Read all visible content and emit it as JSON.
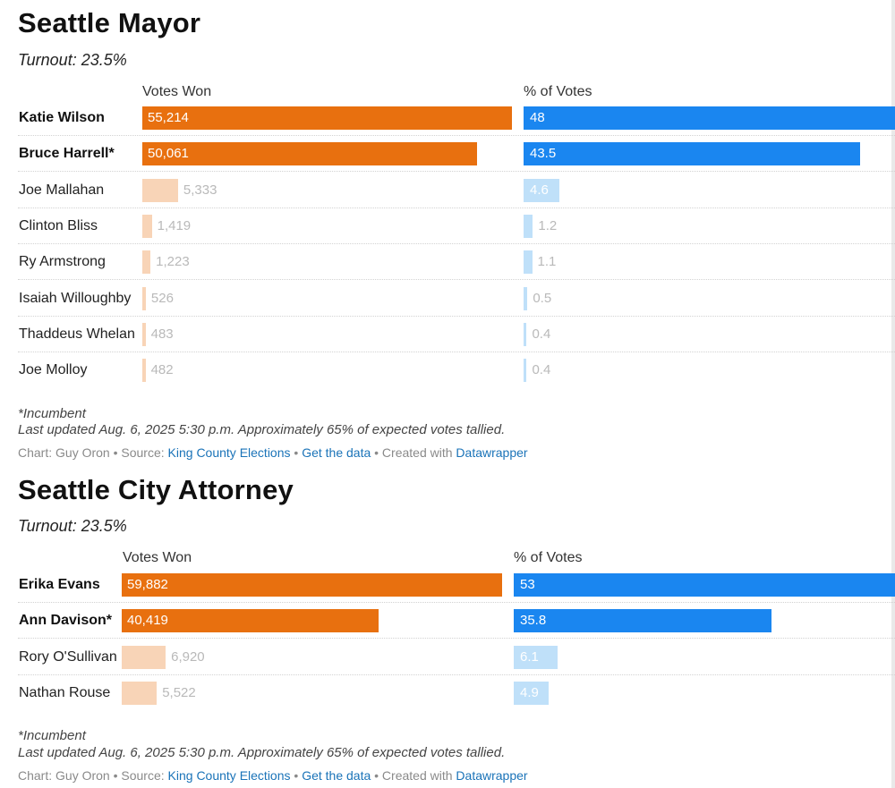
{
  "charts": [
    {
      "title": "Seattle Mayor",
      "turnout": "Turnout: 23.5%",
      "columns": {
        "votes": "Votes Won",
        "pct": "% of Votes"
      },
      "footnote": "*Incumbent",
      "updated": "Last updated Aug. 6, 2025 5:30 p.m. Approximately 65% of expected votes tallied.",
      "credit": {
        "prefix": "Chart: Guy Oron • Source: ",
        "source": "King County Elections",
        "sep1": " • ",
        "getdata": "Get the data",
        "sep2": " • Created with ",
        "tool": "Datawrapper"
      }
    },
    {
      "title": "Seattle City Attorney",
      "turnout": "Turnout: 23.5%",
      "columns": {
        "votes": "Votes Won",
        "pct": "% of Votes"
      },
      "footnote": "*Incumbent",
      "updated": "Last updated Aug. 6, 2025 5:30 p.m. Approximately 65% of expected votes tallied.",
      "credit": {
        "prefix": "Chart: Guy Oron • Source: ",
        "source": "King County Elections",
        "sep1": " • ",
        "getdata": "Get the data",
        "sep2": " • Created with ",
        "tool": "Datawrapper"
      }
    }
  ],
  "chart_data": [
    {
      "type": "bar",
      "title": "Seattle Mayor",
      "series": [
        {
          "name": "Votes Won",
          "max": 55214
        },
        {
          "name": "% of Votes",
          "max": 48
        }
      ],
      "rows": [
        {
          "name": "Katie Wilson",
          "votes": 55214,
          "votes_label": "55,214",
          "pct": 48,
          "pct_label": "48",
          "highlight": true
        },
        {
          "name": "Bruce Harrell*",
          "votes": 50061,
          "votes_label": "50,061",
          "pct": 43.5,
          "pct_label": "43.5",
          "highlight": true
        },
        {
          "name": "Joe Mallahan",
          "votes": 5333,
          "votes_label": "5,333",
          "pct": 4.6,
          "pct_label": "4.6",
          "highlight": false
        },
        {
          "name": "Clinton Bliss",
          "votes": 1419,
          "votes_label": "1,419",
          "pct": 1.2,
          "pct_label": "1.2",
          "highlight": false
        },
        {
          "name": "Ry Armstrong",
          "votes": 1223,
          "votes_label": "1,223",
          "pct": 1.1,
          "pct_label": "1.1",
          "highlight": false
        },
        {
          "name": "Isaiah Willoughby",
          "votes": 526,
          "votes_label": "526",
          "pct": 0.5,
          "pct_label": "0.5",
          "highlight": false
        },
        {
          "name": "Thaddeus Whelan",
          "votes": 483,
          "votes_label": "483",
          "pct": 0.4,
          "pct_label": "0.4",
          "highlight": false
        },
        {
          "name": "Joe Molloy",
          "votes": 482,
          "votes_label": "482",
          "pct": 0.4,
          "pct_label": "0.4",
          "highlight": false
        }
      ]
    },
    {
      "type": "bar",
      "title": "Seattle City Attorney",
      "series": [
        {
          "name": "Votes Won",
          "max": 59882
        },
        {
          "name": "% of Votes",
          "max": 53
        }
      ],
      "rows": [
        {
          "name": "Erika Evans",
          "votes": 59882,
          "votes_label": "59,882",
          "pct": 53,
          "pct_label": "53",
          "highlight": true
        },
        {
          "name": "Ann Davison*",
          "votes": 40419,
          "votes_label": "40,419",
          "pct": 35.8,
          "pct_label": "35.8",
          "highlight": true
        },
        {
          "name": "Rory O'Sullivan",
          "votes": 6920,
          "votes_label": "6,920",
          "pct": 6.1,
          "pct_label": "6.1",
          "highlight": false
        },
        {
          "name": "Nathan Rouse",
          "votes": 5522,
          "votes_label": "5,522",
          "pct": 4.9,
          "pct_label": "4.9",
          "highlight": false
        }
      ]
    }
  ]
}
